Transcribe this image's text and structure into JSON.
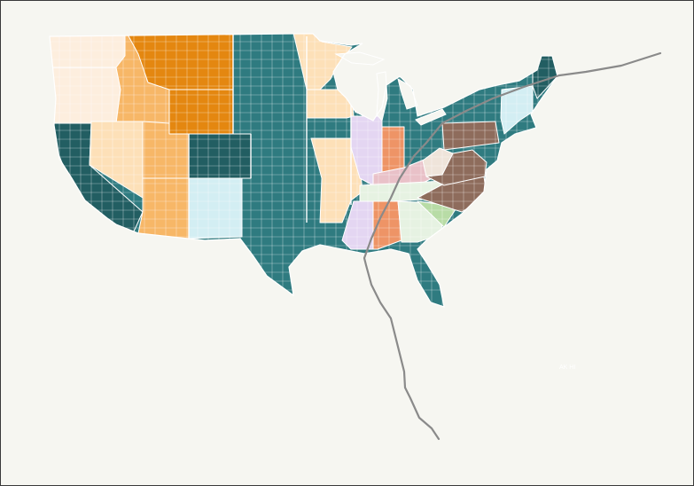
{
  "map": {
    "colors": {
      "background": "#f6f6f1",
      "outline": "#ffffff",
      "track": "#8a8a8a",
      "teal": "#2f7b80",
      "dark_teal": "#225e62",
      "orange": "#e48710",
      "light_orange": "#f7b767",
      "peach": "#fde0b8",
      "cream": "#fdeede",
      "light_blue": "#d3eef3",
      "lavender": "#e4d6f2",
      "salmon": "#ee9466",
      "pink": "#e9c1c8",
      "light_green": "#b8dca6",
      "pale_green": "#e6f2e2",
      "brown": "#8e6c5c",
      "beige": "#efe4da"
    },
    "inset_label": "AK HI"
  }
}
